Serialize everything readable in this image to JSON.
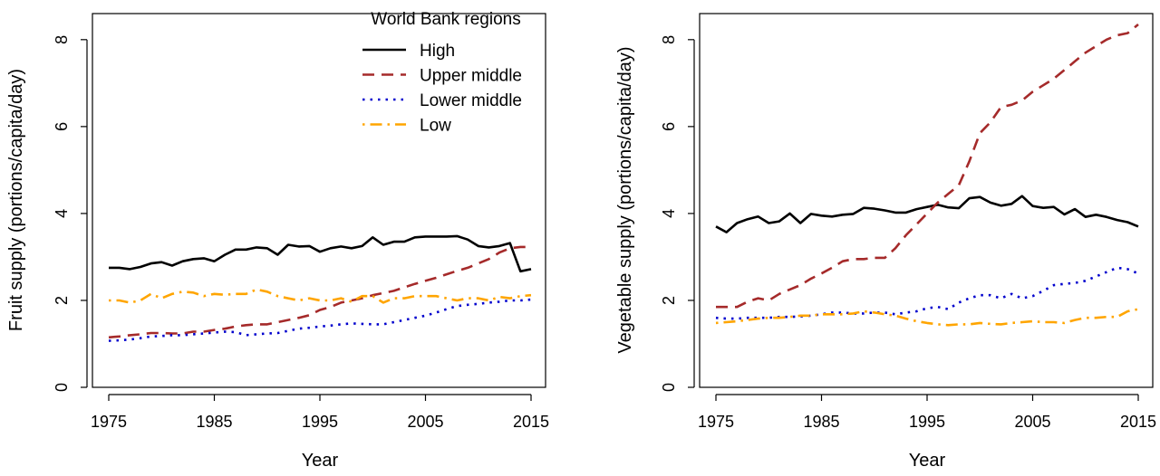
{
  "chart_data": [
    {
      "type": "line",
      "xlabel": "Year",
      "ylabel": "Fruit supply (portions/capita/day)",
      "xlim": [
        1975,
        2015
      ],
      "ylim": [
        0,
        8.6
      ],
      "xticks": [
        "1975",
        "1985",
        "1995",
        "2005",
        "2015"
      ],
      "yticks": [
        "0",
        "2",
        "4",
        "6",
        "8"
      ],
      "legend": {
        "title": "World Bank regions",
        "placement": "top-right",
        "entries": [
          "High",
          "Upper middle",
          "Lower middle",
          "Low"
        ]
      },
      "x": [
        1975,
        1976,
        1977,
        1978,
        1979,
        1980,
        1981,
        1982,
        1983,
        1984,
        1985,
        1986,
        1987,
        1988,
        1989,
        1990,
        1991,
        1992,
        1993,
        1994,
        1995,
        1996,
        1997,
        1998,
        1999,
        2000,
        2001,
        2002,
        2003,
        2004,
        2005,
        2006,
        2007,
        2008,
        2009,
        2010,
        2011,
        2012,
        2013,
        2014,
        2015
      ],
      "series": [
        {
          "name": "High",
          "color": "#000000",
          "dash": "solid",
          "values": [
            2.75,
            2.75,
            2.72,
            2.77,
            2.85,
            2.88,
            2.8,
            2.9,
            2.95,
            2.97,
            2.9,
            3.05,
            3.17,
            3.17,
            3.22,
            3.2,
            3.05,
            3.28,
            3.24,
            3.25,
            3.12,
            3.2,
            3.24,
            3.2,
            3.25,
            3.45,
            3.28,
            3.35,
            3.35,
            3.45,
            3.47,
            3.47,
            3.47,
            3.48,
            3.4,
            3.25,
            3.22,
            3.25,
            3.32,
            2.67,
            2.72
          ]
        },
        {
          "name": "Upper middle",
          "color": "#a52a2a",
          "dash": "dashed",
          "values": [
            1.15,
            1.17,
            1.2,
            1.22,
            1.25,
            1.25,
            1.24,
            1.24,
            1.28,
            1.28,
            1.32,
            1.35,
            1.4,
            1.43,
            1.45,
            1.45,
            1.5,
            1.55,
            1.6,
            1.66,
            1.78,
            1.85,
            1.95,
            2.0,
            2.05,
            2.12,
            2.17,
            2.22,
            2.3,
            2.38,
            2.45,
            2.52,
            2.6,
            2.68,
            2.75,
            2.85,
            2.95,
            3.1,
            3.2,
            3.23,
            3.23
          ]
        },
        {
          "name": "Lower middle",
          "color": "#0000cd",
          "dash": "dotted",
          "values": [
            1.07,
            1.08,
            1.1,
            1.13,
            1.17,
            1.18,
            1.2,
            1.2,
            1.22,
            1.24,
            1.26,
            1.28,
            1.27,
            1.2,
            1.22,
            1.24,
            1.25,
            1.3,
            1.35,
            1.37,
            1.4,
            1.42,
            1.45,
            1.47,
            1.46,
            1.45,
            1.45,
            1.5,
            1.55,
            1.6,
            1.65,
            1.72,
            1.8,
            1.87,
            1.9,
            1.92,
            1.95,
            1.97,
            2.0,
            2.0,
            2.02
          ]
        },
        {
          "name": "Low",
          "color": "#ffa500",
          "dash": "dotdash",
          "values": [
            2.0,
            2.0,
            1.95,
            2.0,
            2.15,
            2.05,
            2.15,
            2.2,
            2.18,
            2.1,
            2.15,
            2.13,
            2.15,
            2.15,
            2.25,
            2.2,
            2.1,
            2.05,
            2.0,
            2.05,
            2.0,
            2.0,
            2.05,
            1.97,
            2.1,
            2.1,
            1.95,
            2.05,
            2.05,
            2.1,
            2.1,
            2.1,
            2.05,
            2.0,
            2.05,
            2.05,
            2.0,
            2.08,
            2.05,
            2.1,
            2.12
          ]
        }
      ]
    },
    {
      "type": "line",
      "xlabel": "Year",
      "ylabel": "Vegetable supply (portions/capita/day)",
      "xlim": [
        1975,
        2015
      ],
      "ylim": [
        0,
        8.6
      ],
      "xticks": [
        "1975",
        "1985",
        "1995",
        "2005",
        "2015"
      ],
      "yticks": [
        "0",
        "2",
        "4",
        "6",
        "8"
      ],
      "x": [
        1975,
        1976,
        1977,
        1978,
        1979,
        1980,
        1981,
        1982,
        1983,
        1984,
        1985,
        1986,
        1987,
        1988,
        1989,
        1990,
        1991,
        1992,
        1993,
        1994,
        1995,
        1996,
        1997,
        1998,
        1999,
        2000,
        2001,
        2002,
        2003,
        2004,
        2005,
        2006,
        2007,
        2008,
        2009,
        2010,
        2011,
        2012,
        2013,
        2014,
        2015
      ],
      "series": [
        {
          "name": "High",
          "color": "#000000",
          "dash": "solid",
          "values": [
            3.7,
            3.57,
            3.78,
            3.87,
            3.93,
            3.78,
            3.82,
            4.0,
            3.78,
            3.99,
            3.95,
            3.93,
            3.97,
            3.99,
            4.13,
            4.11,
            4.07,
            4.02,
            4.02,
            4.1,
            4.15,
            4.2,
            4.14,
            4.12,
            4.35,
            4.38,
            4.25,
            4.18,
            4.22,
            4.4,
            4.17,
            4.13,
            4.15,
            3.98,
            4.1,
            3.92,
            3.97,
            3.92,
            3.85,
            3.8,
            3.7
          ]
        },
        {
          "name": "Upper middle",
          "color": "#a52a2a",
          "dash": "dashed",
          "values": [
            1.85,
            1.85,
            1.85,
            1.97,
            2.05,
            2.0,
            2.15,
            2.25,
            2.35,
            2.5,
            2.62,
            2.75,
            2.9,
            2.95,
            2.95,
            2.98,
            2.98,
            3.2,
            3.5,
            3.75,
            4.0,
            4.25,
            4.45,
            4.65,
            5.2,
            5.85,
            6.1,
            6.45,
            6.5,
            6.6,
            6.8,
            6.95,
            7.1,
            7.3,
            7.5,
            7.7,
            7.85,
            8.0,
            8.1,
            8.15,
            8.35
          ]
        },
        {
          "name": "Lower middle",
          "color": "#0000cd",
          "dash": "dotted",
          "values": [
            1.6,
            1.58,
            1.58,
            1.6,
            1.6,
            1.6,
            1.62,
            1.62,
            1.63,
            1.65,
            1.68,
            1.72,
            1.72,
            1.7,
            1.7,
            1.72,
            1.72,
            1.68,
            1.72,
            1.75,
            1.82,
            1.85,
            1.8,
            1.95,
            2.05,
            2.12,
            2.12,
            2.05,
            2.15,
            2.05,
            2.1,
            2.22,
            2.35,
            2.38,
            2.4,
            2.45,
            2.55,
            2.65,
            2.75,
            2.72,
            2.62
          ]
        },
        {
          "name": "Low",
          "color": "#ffa500",
          "dash": "dotdash",
          "values": [
            1.48,
            1.5,
            1.52,
            1.55,
            1.58,
            1.6,
            1.6,
            1.62,
            1.65,
            1.65,
            1.68,
            1.68,
            1.68,
            1.7,
            1.75,
            1.72,
            1.68,
            1.65,
            1.58,
            1.52,
            1.48,
            1.45,
            1.43,
            1.45,
            1.45,
            1.48,
            1.46,
            1.45,
            1.48,
            1.5,
            1.52,
            1.5,
            1.5,
            1.48,
            1.55,
            1.6,
            1.6,
            1.62,
            1.62,
            1.75,
            1.8
          ]
        }
      ]
    }
  ]
}
